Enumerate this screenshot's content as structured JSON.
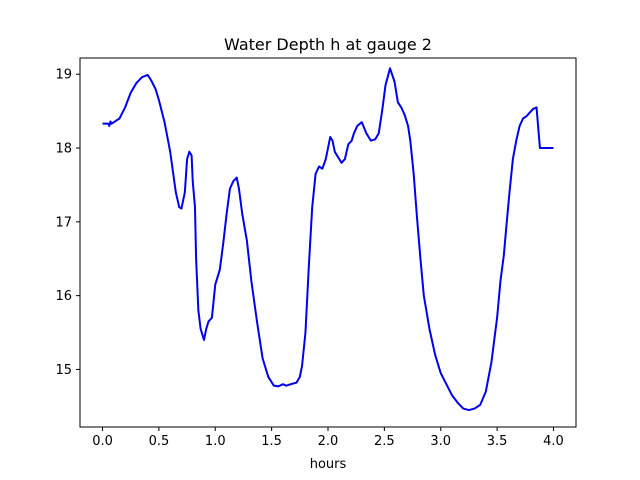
{
  "chart_data": {
    "type": "line",
    "title": "Water Depth h at gauge 2",
    "xlabel": "hours",
    "ylabel": "",
    "xlim": [
      -0.2,
      4.2
    ],
    "ylim": [
      14.22,
      19.22
    ],
    "xticks": [
      0.0,
      0.5,
      1.0,
      1.5,
      2.0,
      2.5,
      3.0,
      3.5,
      4.0
    ],
    "xtick_labels": [
      "0.0",
      "0.5",
      "1.0",
      "1.5",
      "2.0",
      "2.5",
      "3.0",
      "3.5",
      "4.0"
    ],
    "yticks": [
      15,
      16,
      17,
      18,
      19
    ],
    "ytick_labels": [
      "15",
      "16",
      "17",
      "18",
      "19"
    ],
    "grid": false,
    "series": [
      {
        "color": "#0000ee",
        "x": [
          0.0,
          0.05,
          0.06,
          0.07,
          0.08,
          0.1,
          0.15,
          0.2,
          0.25,
          0.3,
          0.35,
          0.4,
          0.43,
          0.47,
          0.5,
          0.55,
          0.6,
          0.65,
          0.68,
          0.7,
          0.73,
          0.75,
          0.77,
          0.79,
          0.8,
          0.82,
          0.83,
          0.85,
          0.87,
          0.9,
          0.92,
          0.94,
          0.97,
          1.0,
          1.02,
          1.04,
          1.07,
          1.1,
          1.13,
          1.16,
          1.19,
          1.21,
          1.24,
          1.28,
          1.32,
          1.37,
          1.42,
          1.47,
          1.52,
          1.56,
          1.6,
          1.63,
          1.67,
          1.72,
          1.75,
          1.77,
          1.8,
          1.83,
          1.86,
          1.89,
          1.92,
          1.95,
          1.98,
          2.0,
          2.02,
          2.04,
          2.06,
          2.08,
          2.1,
          2.12,
          2.15,
          2.18,
          2.21,
          2.23,
          2.26,
          2.3,
          2.34,
          2.38,
          2.42,
          2.45,
          2.48,
          2.51,
          2.55,
          2.59,
          2.62,
          2.65,
          2.68,
          2.71,
          2.73,
          2.76,
          2.79,
          2.82,
          2.85,
          2.9,
          2.95,
          3.0,
          3.05,
          3.1,
          3.15,
          3.2,
          3.25,
          3.3,
          3.35,
          3.4,
          3.45,
          3.5,
          3.53,
          3.56,
          3.58,
          3.61,
          3.64,
          3.67,
          3.7,
          3.73,
          3.76,
          3.79,
          3.82,
          3.85,
          3.88,
          3.92,
          3.96,
          4.0
        ],
        "y": [
          18.33,
          18.33,
          18.3,
          18.36,
          18.33,
          18.35,
          18.4,
          18.55,
          18.75,
          18.88,
          18.96,
          18.99,
          18.92,
          18.8,
          18.65,
          18.35,
          17.95,
          17.4,
          17.2,
          17.18,
          17.4,
          17.85,
          17.95,
          17.9,
          17.55,
          17.2,
          16.5,
          15.8,
          15.55,
          15.4,
          15.55,
          15.65,
          15.7,
          16.15,
          16.25,
          16.35,
          16.7,
          17.1,
          17.45,
          17.55,
          17.6,
          17.45,
          17.1,
          16.75,
          16.2,
          15.65,
          15.15,
          14.9,
          14.78,
          14.77,
          14.8,
          14.78,
          14.8,
          14.82,
          14.9,
          15.05,
          15.5,
          16.4,
          17.2,
          17.65,
          17.75,
          17.72,
          17.85,
          18.0,
          18.15,
          18.1,
          17.95,
          17.9,
          17.85,
          17.8,
          17.85,
          18.05,
          18.1,
          18.2,
          18.3,
          18.35,
          18.2,
          18.1,
          18.12,
          18.2,
          18.5,
          18.85,
          19.08,
          18.9,
          18.62,
          18.55,
          18.45,
          18.3,
          18.1,
          17.65,
          17.05,
          16.5,
          16.0,
          15.55,
          15.2,
          14.95,
          14.8,
          14.65,
          14.55,
          14.47,
          14.45,
          14.47,
          14.52,
          14.7,
          15.1,
          15.7,
          16.2,
          16.55,
          16.9,
          17.4,
          17.85,
          18.1,
          18.3,
          18.4,
          18.43,
          18.48,
          18.53,
          18.55,
          18.0,
          18.0,
          18.0,
          18.0
        ]
      }
    ]
  }
}
